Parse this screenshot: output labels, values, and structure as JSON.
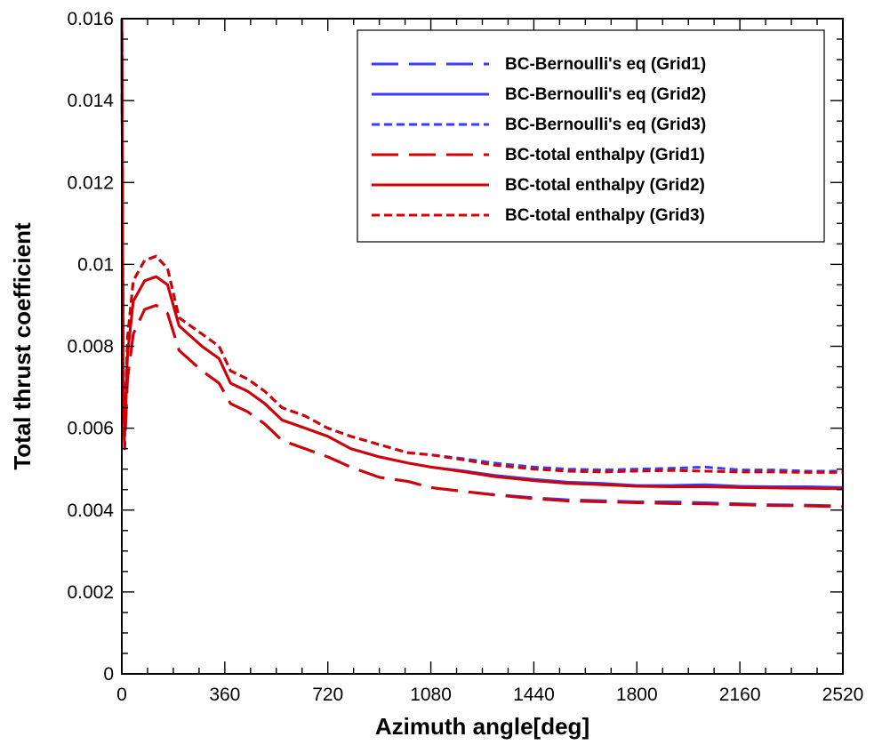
{
  "chart_data": {
    "type": "line",
    "title": "",
    "xlabel": "Azimuth angle[deg]",
    "ylabel": "Total thrust coefficient",
    "xlim": [
      0,
      2520
    ],
    "ylim": [
      0,
      0.016
    ],
    "xticks": [
      0,
      360,
      720,
      1080,
      1440,
      1800,
      2160,
      2520
    ],
    "xtick_labels": [
      "0",
      "360",
      "720",
      "1080",
      "1440",
      "1800",
      "2160",
      "2520"
    ],
    "yticks": [
      0,
      0.002,
      0.004,
      0.006,
      0.008,
      0.01,
      0.012,
      0.014,
      0.016
    ],
    "ytick_labels": [
      "0",
      "0.002",
      "0.004",
      "0.006",
      "0.008",
      "0.01",
      "0.012",
      "0.014",
      "0.016"
    ],
    "legend_position": "top-right",
    "grid": false,
    "series": [
      {
        "name": "BC-Bernoulli's eq (Grid1)",
        "color": "#3a3aff",
        "dash": "long",
        "x": [
          0,
          5,
          10,
          20,
          40,
          80,
          120,
          160,
          200,
          280,
          340,
          380,
          440,
          500,
          560,
          640,
          720,
          800,
          900,
          1000,
          1080,
          1200,
          1300,
          1440,
          1560,
          1680,
          1800,
          1920,
          2040,
          2160,
          2280,
          2400,
          2520
        ],
        "y": [
          0.016,
          0.0065,
          0.0055,
          0.0072,
          0.0083,
          0.0089,
          0.009,
          0.0088,
          0.0079,
          0.0074,
          0.0071,
          0.0066,
          0.0064,
          0.0061,
          0.0057,
          0.0055,
          0.0053,
          0.00505,
          0.0048,
          0.0047,
          0.00455,
          0.00445,
          0.00438,
          0.0043,
          0.00425,
          0.00423,
          0.0042,
          0.0042,
          0.00418,
          0.00415,
          0.00413,
          0.00412,
          0.0041
        ]
      },
      {
        "name": "BC-Bernoulli's eq (Grid2)",
        "color": "#3a3aff",
        "dash": "solid",
        "x": [
          0,
          5,
          10,
          20,
          40,
          80,
          120,
          160,
          200,
          280,
          340,
          380,
          440,
          500,
          560,
          640,
          720,
          800,
          900,
          1000,
          1080,
          1200,
          1300,
          1440,
          1560,
          1680,
          1800,
          1920,
          2040,
          2160,
          2280,
          2400,
          2520
        ],
        "y": [
          0.016,
          0.0068,
          0.0058,
          0.0078,
          0.0091,
          0.0096,
          0.0097,
          0.0095,
          0.0085,
          0.008,
          0.0077,
          0.0071,
          0.0069,
          0.0066,
          0.0062,
          0.006,
          0.0058,
          0.0055,
          0.0053,
          0.00515,
          0.00505,
          0.00495,
          0.00485,
          0.00475,
          0.00468,
          0.00465,
          0.0046,
          0.0046,
          0.00462,
          0.00458,
          0.00457,
          0.00457,
          0.00455
        ]
      },
      {
        "name": "BC-Bernoulli's eq (Grid3)",
        "color": "#3a3aff",
        "dash": "short",
        "x": [
          0,
          5,
          10,
          20,
          40,
          80,
          120,
          160,
          200,
          280,
          340,
          380,
          440,
          500,
          560,
          640,
          720,
          800,
          900,
          1000,
          1080,
          1200,
          1300,
          1440,
          1560,
          1680,
          1800,
          1920,
          2040,
          2160,
          2280,
          2400,
          2520
        ],
        "y": [
          0.016,
          0.007,
          0.006,
          0.0082,
          0.0096,
          0.0101,
          0.0102,
          0.0099,
          0.0087,
          0.0083,
          0.008,
          0.0074,
          0.0072,
          0.0069,
          0.0065,
          0.0063,
          0.006,
          0.0058,
          0.0056,
          0.0054,
          0.00535,
          0.00525,
          0.00515,
          0.00505,
          0.005,
          0.00498,
          0.005,
          0.00502,
          0.00505,
          0.00498,
          0.00498,
          0.00495,
          0.00495
        ]
      },
      {
        "name": "BC-total enthalpy (Grid1)",
        "color": "#d40000",
        "dash": "long",
        "x": [
          0,
          5,
          10,
          20,
          40,
          80,
          120,
          160,
          200,
          280,
          340,
          380,
          440,
          500,
          560,
          640,
          720,
          800,
          900,
          1000,
          1080,
          1200,
          1300,
          1440,
          1560,
          1680,
          1800,
          1920,
          2040,
          2160,
          2280,
          2400,
          2520
        ],
        "y": [
          0.016,
          0.0065,
          0.0055,
          0.0072,
          0.0083,
          0.0089,
          0.009,
          0.0088,
          0.0079,
          0.0074,
          0.0071,
          0.0066,
          0.0064,
          0.0061,
          0.0057,
          0.0055,
          0.0053,
          0.00505,
          0.0048,
          0.0047,
          0.00455,
          0.00445,
          0.00437,
          0.00428,
          0.00422,
          0.0042,
          0.00418,
          0.00416,
          0.00415,
          0.00413,
          0.00411,
          0.0041,
          0.00408
        ]
      },
      {
        "name": "BC-total enthalpy (Grid2)",
        "color": "#d40000",
        "dash": "solid",
        "x": [
          0,
          5,
          10,
          20,
          40,
          80,
          120,
          160,
          200,
          280,
          340,
          380,
          440,
          500,
          560,
          640,
          720,
          800,
          900,
          1000,
          1080,
          1200,
          1300,
          1440,
          1560,
          1680,
          1800,
          1920,
          2040,
          2160,
          2280,
          2400,
          2520
        ],
        "y": [
          0.016,
          0.0068,
          0.0058,
          0.0078,
          0.0091,
          0.0096,
          0.0097,
          0.0095,
          0.0085,
          0.008,
          0.0077,
          0.0071,
          0.0069,
          0.0066,
          0.0062,
          0.006,
          0.0058,
          0.0055,
          0.0053,
          0.00515,
          0.00505,
          0.00493,
          0.00482,
          0.00472,
          0.00465,
          0.00462,
          0.00458,
          0.00457,
          0.00457,
          0.00455,
          0.00454,
          0.00453,
          0.00452
        ]
      },
      {
        "name": "BC-total enthalpy (Grid3)",
        "color": "#d40000",
        "dash": "short",
        "x": [
          0,
          5,
          10,
          20,
          40,
          80,
          120,
          160,
          200,
          280,
          340,
          380,
          440,
          500,
          560,
          640,
          720,
          800,
          900,
          1000,
          1080,
          1200,
          1300,
          1440,
          1560,
          1680,
          1800,
          1920,
          2040,
          2160,
          2280,
          2400,
          2520
        ],
        "y": [
          0.016,
          0.007,
          0.006,
          0.0082,
          0.0096,
          0.0101,
          0.0102,
          0.0099,
          0.0087,
          0.0083,
          0.008,
          0.0074,
          0.0072,
          0.0069,
          0.0065,
          0.0063,
          0.006,
          0.0058,
          0.0056,
          0.0054,
          0.00535,
          0.00522,
          0.0051,
          0.005,
          0.00495,
          0.00493,
          0.00495,
          0.00497,
          0.00495,
          0.00493,
          0.00493,
          0.00492,
          0.00492
        ]
      }
    ]
  }
}
